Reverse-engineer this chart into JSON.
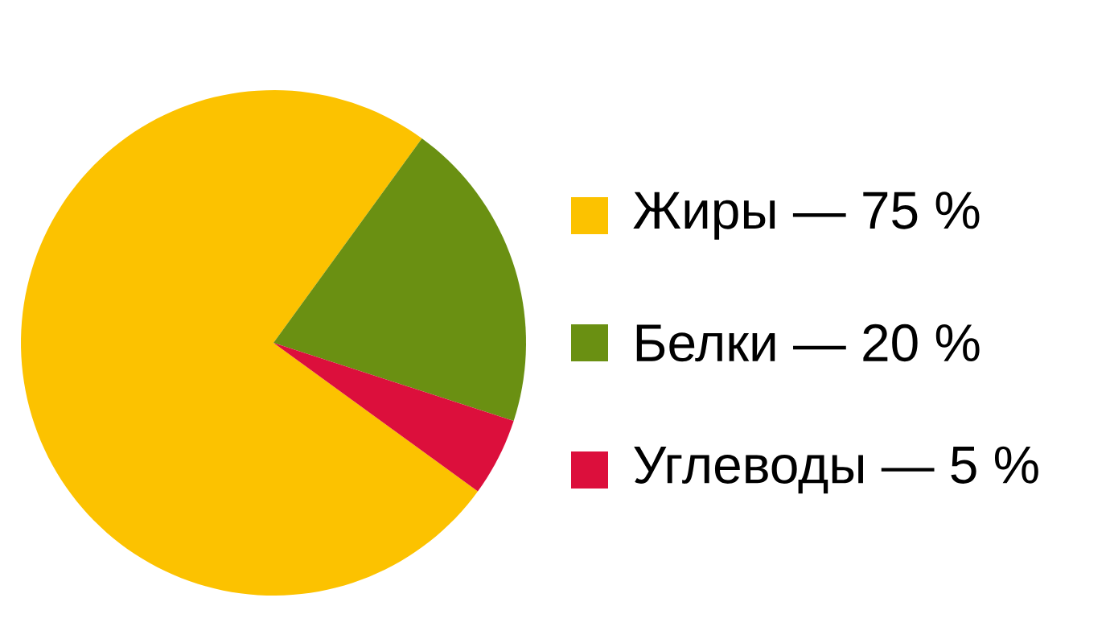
{
  "chart_data": {
    "type": "pie",
    "categories": [
      "Жиры — 75 %",
      "Белки — 20 %",
      "Углеводы — 5 %"
    ],
    "values": [
      75,
      20,
      5
    ],
    "colors": [
      "#fcc200",
      "#6a9012",
      "#dc0f3c"
    ],
    "legend": "right"
  }
}
